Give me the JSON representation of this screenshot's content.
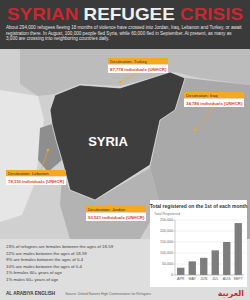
{
  "title": "SYRIAN REFUGEE CRISIS",
  "intro": "About 294,000 refugees fleeing 18 months of violence have crossed into Jordan, Iraq, Lebanon and Turkey, or await registration there. In August, 100,000 people fled Syria, while 60,000 fled in September. At present, as many as 3,000 are crossing into neighboring countries daily.",
  "map_label": "SYRIA",
  "destinations": [
    {
      "label": "Destination: Turkey",
      "text": "87,778 individuals (UNHCR)"
    },
    {
      "label": "Destination: Iraq",
      "text": "34,786 individuals (UNHCR)"
    },
    {
      "label": "Destination: Lebanon",
      "text": "78,110 individuals (UNHCR)"
    },
    {
      "label": "Destination: Jordan",
      "text": "93,521 individuals (UNHCR)"
    }
  ],
  "demographics": [
    "23% of refugees are females between the ages of 18-59",
    "22% are males between the ages of 18-59",
    "9% are females between the ages of 0-4",
    "10% are males between the ages of 0-4",
    "1% females 60+ years of age",
    "1% males 60+ years of age"
  ],
  "chart_data": {
    "type": "bar",
    "title": "Total registered on the 1st of each month",
    "y_label": "Total Registered",
    "categories": [
      "APR",
      "MAY",
      "JUN",
      "JUL",
      "AUG",
      "SEPT"
    ],
    "values": [
      33000,
      62000,
      78000,
      112000,
      150000,
      236000
    ],
    "color": "#7d7d7d",
    "ylim": [
      0,
      250000
    ],
    "yticks": [
      0,
      {
        "value": 50000,
        "label": "50,000"
      },
      {
        "value": 100000,
        "label": "100,000"
      },
      {
        "value": 150000,
        "label": "150,000"
      },
      {
        "value": 200000,
        "label": "200,000"
      },
      {
        "value": 250000,
        "label": "250,000"
      }
    ],
    "grid": true
  },
  "footer": {
    "brand": "AL ARABIYA ENGLISH",
    "brand_arabic": "العربية",
    "source": "Source: United Nations High Commissioner for Refugees"
  }
}
